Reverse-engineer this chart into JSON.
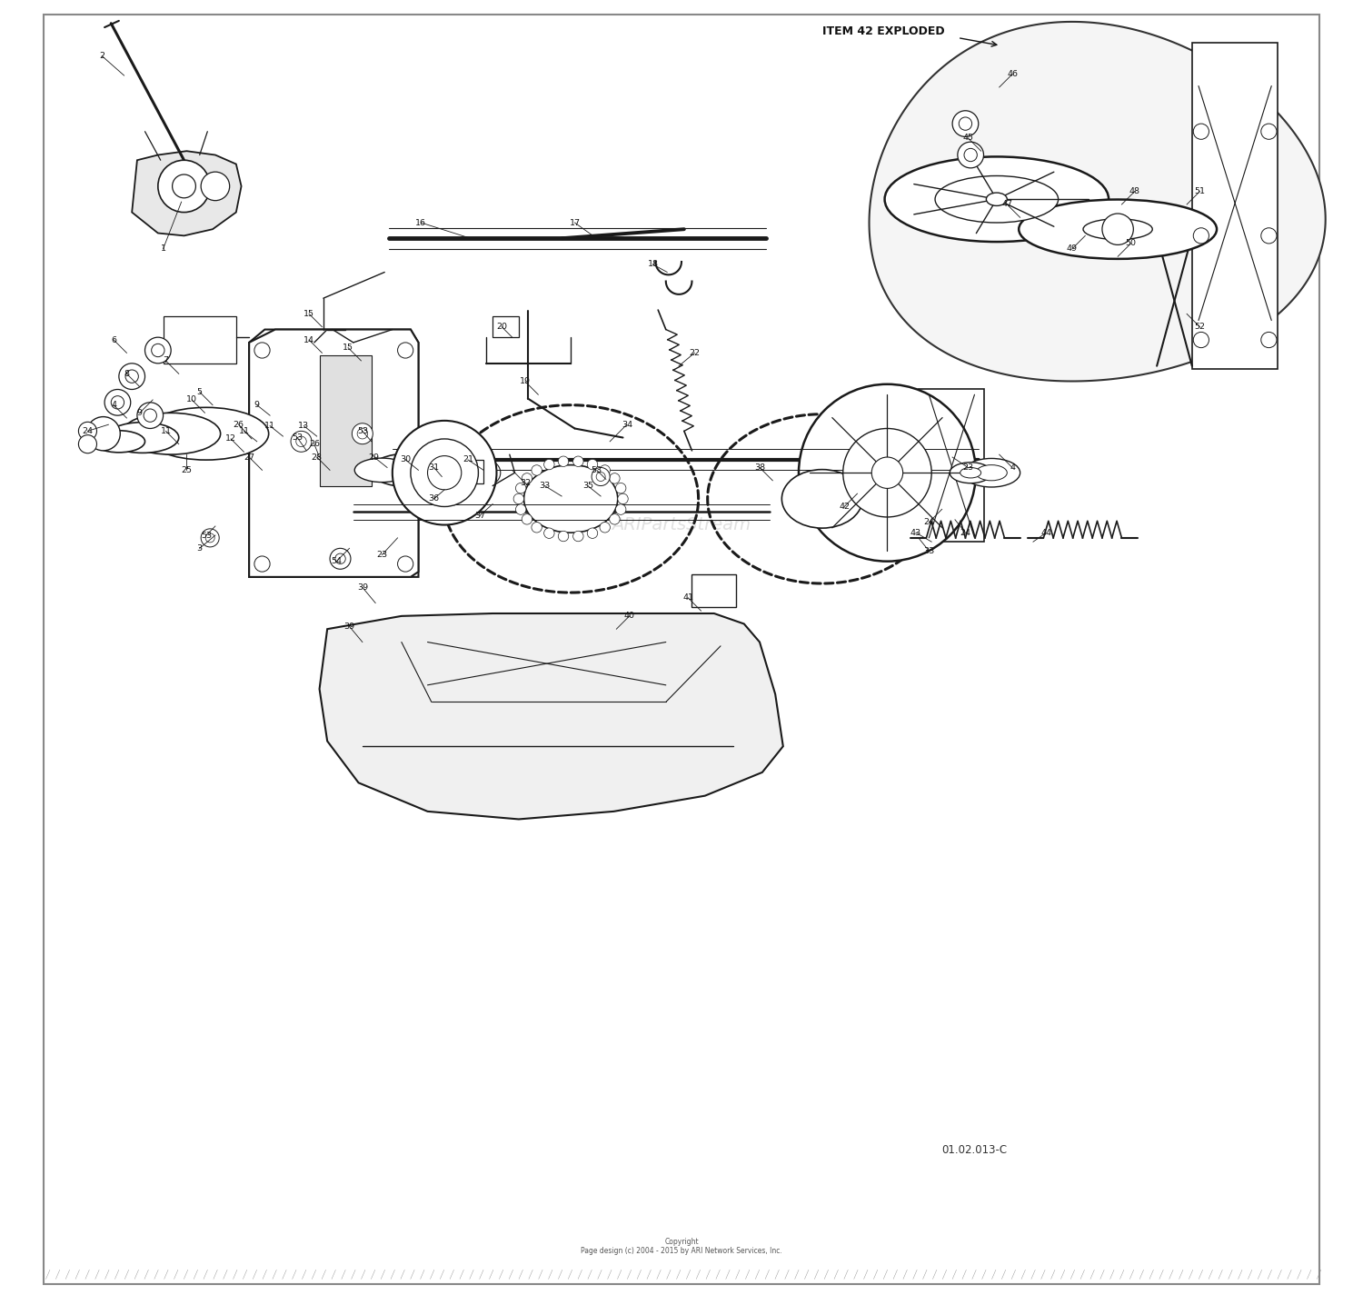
{
  "title": "ITEM 42 EXPLODED",
  "part_number": "01.02.013-C",
  "copyright": "Copyright\nPage design (c) 2004 - 2015 by ARI Network Services, Inc.",
  "watermark": "ARIPartsStream",
  "bg_color": "#ffffff",
  "line_color": "#1a1a1a",
  "label_color": "#111111",
  "watermark_color": "#cccccc",
  "fig_width": 15.0,
  "fig_height": 14.36,
  "dpi": 100
}
